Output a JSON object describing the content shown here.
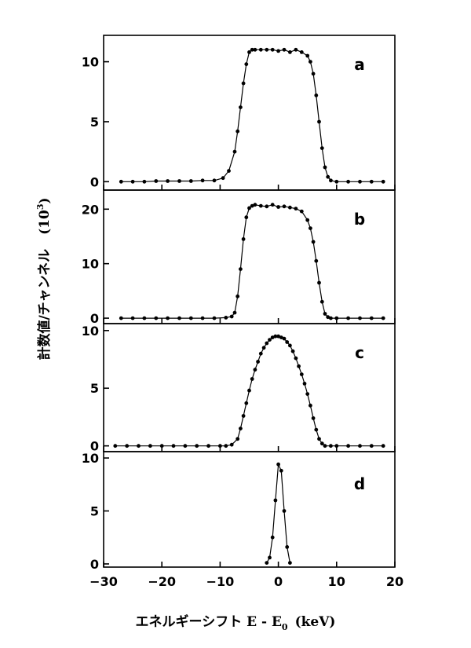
{
  "chart_data": {
    "type": "scatter",
    "xlabel": "エネルギーシフト E - E",
    "xlabel_subscript": "0",
    "xlabel_unit": "(keV)",
    "ylabel": "計数値/チャンネル",
    "ylabel_unit": "(10",
    "ylabel_unit_sup": "3",
    "ylabel_unit_close": ")",
    "x_ticks": [
      "−30",
      "−20",
      "−10",
      "0",
      "10",
      "20"
    ],
    "xlim": [
      -30,
      20
    ],
    "panels": [
      {
        "label": "a",
        "ylim": [
          -0.7,
          12.2
        ],
        "y_ticks": [
          "0",
          "5",
          "10"
        ],
        "x": [
          -27,
          -25,
          -23,
          -21,
          -19,
          -17,
          -15,
          -13,
          -11,
          -9.5,
          -8.5,
          -7.5,
          -7,
          -6.5,
          -6,
          -5.5,
          -5,
          -4.5,
          -4,
          -3,
          -2,
          -1,
          0,
          1,
          2,
          3,
          4,
          5,
          5.5,
          6,
          6.5,
          7,
          7.5,
          8,
          8.5,
          9,
          10,
          12,
          14,
          16,
          18
        ],
        "y": [
          0,
          0,
          0,
          0.05,
          0.05,
          0.05,
          0.05,
          0.1,
          0.1,
          0.3,
          0.9,
          2.5,
          4.2,
          6.2,
          8.2,
          9.8,
          10.8,
          11.0,
          11.0,
          11.0,
          11.0,
          11.0,
          10.9,
          11.0,
          10.8,
          11.0,
          10.8,
          10.5,
          10.0,
          9.0,
          7.2,
          5.0,
          2.8,
          1.2,
          0.4,
          0.1,
          0,
          0,
          0,
          0,
          0
        ]
      },
      {
        "label": "b",
        "ylim": [
          -1,
          23.5
        ],
        "y_ticks": [
          "0",
          "10",
          "20"
        ],
        "x": [
          -27,
          -25,
          -23,
          -21,
          -19,
          -17,
          -15,
          -13,
          -11,
          -9,
          -8,
          -7.5,
          -7,
          -6.5,
          -6,
          -5.5,
          -5,
          -4.5,
          -4,
          -3,
          -2,
          -1,
          0,
          1,
          2,
          3,
          4,
          5,
          5.5,
          6,
          6.5,
          7,
          7.5,
          8,
          8.5,
          9,
          10,
          12,
          14,
          16,
          18
        ],
        "y": [
          0,
          0,
          0,
          0,
          0,
          0,
          0,
          0,
          0,
          0.1,
          0.3,
          1.0,
          4.0,
          9.0,
          14.5,
          18.5,
          20.2,
          20.6,
          20.8,
          20.6,
          20.5,
          20.8,
          20.4,
          20.5,
          20.3,
          20.1,
          19.6,
          18.0,
          16.5,
          14.0,
          10.5,
          6.5,
          3.0,
          0.8,
          0.2,
          0,
          0,
          0,
          0,
          0,
          0
        ]
      },
      {
        "label": "c",
        "ylim": [
          -0.5,
          10.6
        ],
        "y_ticks": [
          "0",
          "5",
          "10"
        ],
        "x": [
          -28,
          -26,
          -24,
          -22,
          -20,
          -18,
          -16,
          -14,
          -12,
          -10,
          -9,
          -8,
          -7,
          -6.5,
          -6,
          -5.5,
          -5,
          -4.5,
          -4,
          -3.5,
          -3,
          -2.5,
          -2,
          -1.5,
          -1,
          -0.5,
          0,
          0.5,
          1,
          1.5,
          2,
          2.5,
          3,
          3.5,
          4,
          4.5,
          5,
          5.5,
          6,
          6.5,
          7,
          7.5,
          8,
          9,
          10,
          12,
          14,
          16,
          18
        ],
        "y": [
          0,
          0,
          0,
          0,
          0,
          0,
          0,
          0,
          0,
          0,
          0,
          0.1,
          0.6,
          1.5,
          2.6,
          3.7,
          4.8,
          5.8,
          6.6,
          7.3,
          8.0,
          8.5,
          8.9,
          9.2,
          9.4,
          9.5,
          9.5,
          9.4,
          9.3,
          9.0,
          8.7,
          8.2,
          7.6,
          6.9,
          6.2,
          5.4,
          4.5,
          3.5,
          2.4,
          1.4,
          0.6,
          0.2,
          0,
          0,
          0,
          0,
          0,
          0,
          0
        ]
      },
      {
        "label": "d",
        "ylim": [
          -0.3,
          10.6
        ],
        "y_ticks": [
          "0",
          "5",
          "10"
        ],
        "x": [
          -2,
          -1.5,
          -1,
          -0.5,
          0,
          0.5,
          1,
          1.5,
          2
        ],
        "y": [
          0.1,
          0.6,
          2.5,
          6.0,
          9.4,
          8.8,
          5.0,
          1.6,
          0.1
        ]
      }
    ]
  }
}
